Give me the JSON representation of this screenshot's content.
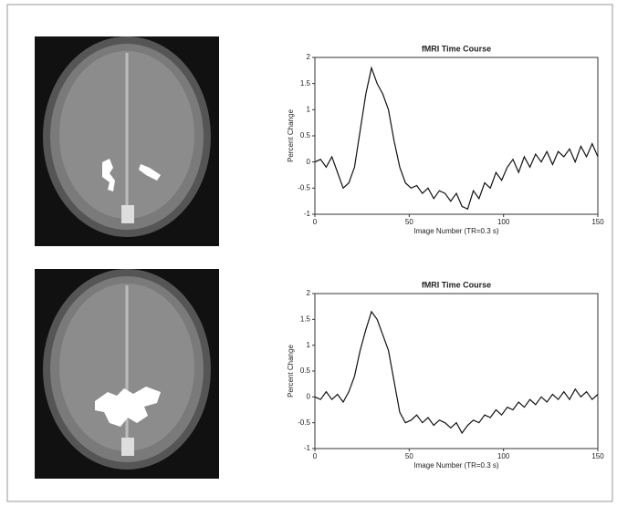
{
  "chart_data": [
    {
      "type": "line",
      "title": "fMRI Time Course",
      "xlabel": "Image Number (TR=0.3 s)",
      "ylabel": "Percent Change",
      "x": [
        0,
        3,
        6,
        9,
        12,
        15,
        18,
        21,
        24,
        27,
        30,
        33,
        36,
        39,
        42,
        45,
        48,
        51,
        54,
        57,
        60,
        63,
        66,
        69,
        72,
        75,
        78,
        81,
        84,
        87,
        90,
        93,
        96,
        99,
        102,
        105,
        108,
        111,
        114,
        117,
        120,
        123,
        126,
        129,
        132,
        135,
        138,
        141,
        144,
        147,
        150
      ],
      "series": [
        {
          "name": null,
          "color": "#111111",
          "values": [
            0,
            0.05,
            -0.1,
            0.1,
            -0.2,
            -0.5,
            -0.4,
            -0.1,
            0.6,
            1.3,
            1.8,
            1.5,
            1.3,
            1.0,
            0.4,
            -0.1,
            -0.4,
            -0.5,
            -0.45,
            -0.6,
            -0.5,
            -0.7,
            -0.55,
            -0.6,
            -0.75,
            -0.6,
            -0.85,
            -0.9,
            -0.55,
            -0.7,
            -0.4,
            -0.5,
            -0.2,
            -0.35,
            -0.1,
            0.05,
            -0.2,
            0.1,
            -0.1,
            0.15,
            0.0,
            0.2,
            -0.05,
            0.2,
            0.1,
            0.25,
            0.0,
            0.3,
            0.1,
            0.35,
            0.1
          ]
        }
      ],
      "xlim": [
        0,
        150
      ],
      "xticks": [
        0,
        50,
        100,
        150
      ],
      "ylim": [
        -1,
        2
      ],
      "yticks": [
        -1,
        -0.5,
        0,
        0.5,
        1,
        1.5,
        2
      ]
    },
    {
      "type": "line",
      "title": "fMRI Time Course",
      "xlabel": "Image Number (TR=0.3 s)",
      "ylabel": "Percent Change",
      "x": [
        0,
        3,
        6,
        9,
        12,
        15,
        18,
        21,
        24,
        27,
        30,
        33,
        36,
        39,
        42,
        45,
        48,
        51,
        54,
        57,
        60,
        63,
        66,
        69,
        72,
        75,
        78,
        81,
        84,
        87,
        90,
        93,
        96,
        99,
        102,
        105,
        108,
        111,
        114,
        117,
        120,
        123,
        126,
        129,
        132,
        135,
        138,
        141,
        144,
        147,
        150
      ],
      "series": [
        {
          "name": null,
          "color": "#111111",
          "values": [
            0,
            -0.05,
            0.1,
            -0.05,
            0.05,
            -0.1,
            0.1,
            0.4,
            0.9,
            1.3,
            1.65,
            1.5,
            1.2,
            0.9,
            0.3,
            -0.3,
            -0.5,
            -0.45,
            -0.35,
            -0.5,
            -0.4,
            -0.55,
            -0.45,
            -0.5,
            -0.6,
            -0.5,
            -0.7,
            -0.55,
            -0.45,
            -0.5,
            -0.35,
            -0.4,
            -0.25,
            -0.35,
            -0.2,
            -0.25,
            -0.1,
            -0.2,
            -0.05,
            -0.15,
            0.0,
            -0.1,
            0.05,
            -0.05,
            0.1,
            -0.05,
            0.15,
            0.0,
            0.1,
            -0.05,
            0.05
          ]
        }
      ],
      "xlim": [
        0,
        150
      ],
      "xticks": [
        0,
        50,
        100,
        150
      ],
      "ylim": [
        -1,
        2
      ],
      "yticks": [
        -1,
        -0.5,
        0,
        0.5,
        1,
        1.5,
        2
      ]
    }
  ]
}
